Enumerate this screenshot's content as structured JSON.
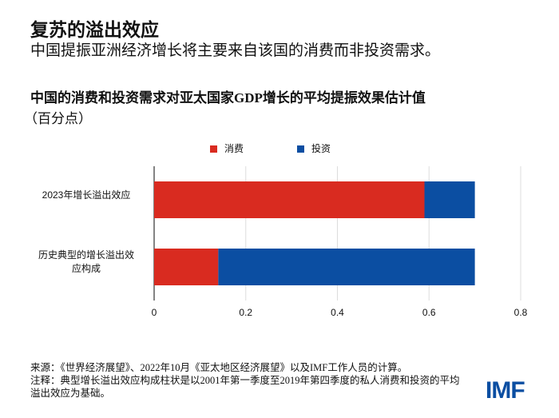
{
  "title": "复苏的溢出效应",
  "subtitle": "中国提振亚洲经济增长将主要来自该国的消费而非投资需求。",
  "chart_data": {
    "type": "bar",
    "orientation": "horizontal",
    "stacked": true,
    "title": "中国的消费和投资需求对亚太国家GDP增长的平均提振效果估计值",
    "unit_label": "（百分点）",
    "categories": [
      "2023年增长溢出效应",
      "历史典型的增长溢出效应构成"
    ],
    "series": [
      {
        "name": "消费",
        "color": "#d92b20",
        "values": [
          0.59,
          0.14
        ]
      },
      {
        "name": "投资",
        "color": "#0b4ea2",
        "values": [
          0.11,
          0.56
        ]
      }
    ],
    "xlim": [
      0,
      0.8
    ],
    "xticks": [
      0,
      0.2,
      0.4,
      0.6,
      0.8
    ],
    "grid": true
  },
  "source": "来源：《世界经济展望》、2022年10月《亚太地区经济展望》以及IMF工作人员的计算。",
  "note": "注释：典型增长溢出效应构成柱状是以2001年第一季度至2019年第四季度的私人消费和投资的平均溢出效应为基础。",
  "logo": "IMF"
}
